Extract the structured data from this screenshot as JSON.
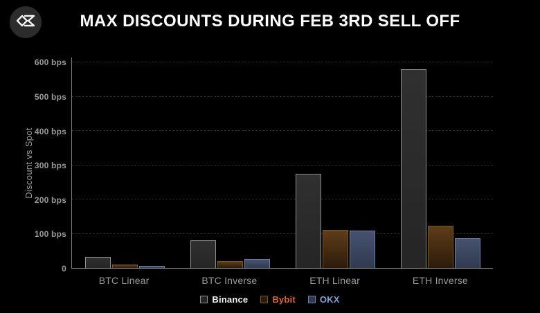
{
  "header": {
    "title": "MAX DISCOUNTS DURING FEB 3RD SELL OFF"
  },
  "colors": {
    "background": "#000000",
    "axis_line": "#7d7d7d",
    "gridline": "#2b2b2b",
    "tick_text": "#9a9a9a",
    "title_text": "#ffffff",
    "binance_accent": "#f2f2f2",
    "bybit_accent": "#e2622b",
    "okx_accent": "#7fa3dd"
  },
  "chart_data": {
    "type": "bar",
    "title": "MAX DISCOUNTS DURING FEB 3RD SELL OFF",
    "xlabel": "",
    "ylabel": "Discount vs Spot",
    "ylim": [
      0,
      615
    ],
    "grid": true,
    "legend_position": "bottom",
    "unit": "bps",
    "categories": [
      "BTC Linear",
      "BTC Inverse",
      "ETH Linear",
      "ETH Inverse"
    ],
    "yticks": [
      {
        "value": 600,
        "label": "600 bps"
      },
      {
        "value": 500,
        "label": "500 bps"
      },
      {
        "value": 400,
        "label": "400 bps"
      },
      {
        "value": 300,
        "label": "300 bps"
      },
      {
        "value": 200,
        "label": "200 bps"
      },
      {
        "value": 100,
        "label": "100 bps"
      },
      {
        "value": 0,
        "label": "0"
      }
    ],
    "series": [
      {
        "name": "Binance",
        "values": [
          32,
          80,
          275,
          580
        ],
        "fill_top": "#303030",
        "fill_bottom": "#252525",
        "border": "#8f8f8f",
        "label_color": "#f2f2f2"
      },
      {
        "name": "Bybit",
        "values": [
          11,
          21,
          112,
          124
        ],
        "fill_top": "#5e3d19",
        "fill_bottom": "#2c1b0a",
        "border": "#7b5426",
        "label_color": "#e2622b"
      },
      {
        "name": "OKX",
        "values": [
          7,
          26,
          109,
          87
        ],
        "fill_top": "#46526e",
        "fill_bottom": "#303a4f",
        "border": "#6b81aa",
        "label_color": "#7fa3dd"
      }
    ]
  }
}
